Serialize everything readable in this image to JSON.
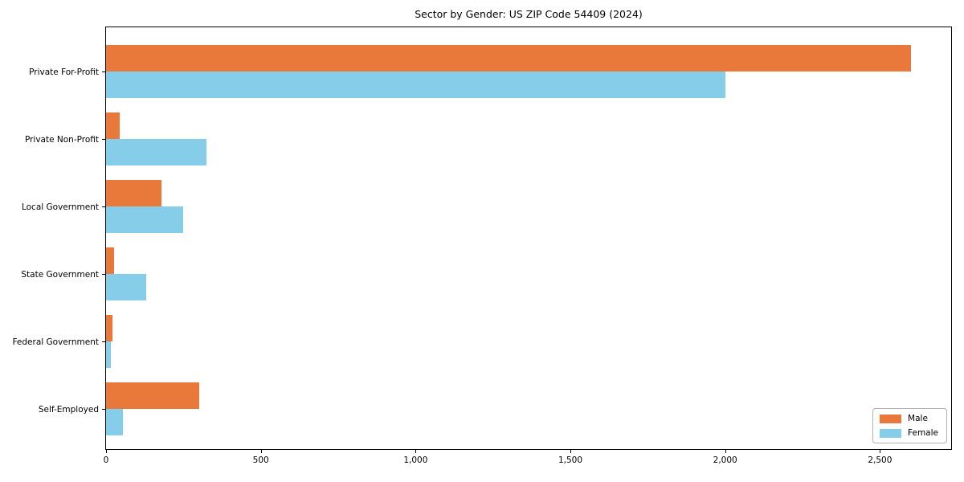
{
  "title": "Sector by Gender: US ZIP Code 54409 (2024)",
  "chart_data": {
    "type": "bar",
    "orientation": "horizontal",
    "title": "Sector by Gender: US ZIP Code 54409 (2024)",
    "categories": [
      "Private For-Profit",
      "Private Non-Profit",
      "Local Government",
      "State Government",
      "Federal Government",
      "Self-Employed"
    ],
    "series": [
      {
        "name": "Male",
        "color": "#E8793B",
        "values": [
          2600,
          45,
          180,
          25,
          20,
          300
        ]
      },
      {
        "name": "Female",
        "color": "#85CDE8",
        "values": [
          2000,
          325,
          250,
          130,
          15,
          55
        ]
      }
    ],
    "xlabel": "",
    "ylabel": "",
    "xlim": [
      0,
      2730
    ],
    "xticks": [
      0,
      500,
      1000,
      1500,
      2000,
      2500
    ],
    "xtick_labels": [
      "0",
      "500",
      "1,000",
      "1,500",
      "2,000",
      "2,500"
    ],
    "grid": false,
    "legend": {
      "position": "lower right",
      "entries": [
        "Male",
        "Female"
      ]
    }
  },
  "colors": {
    "male": "#E8793B",
    "female": "#85CDE8",
    "axis": "#000000",
    "legend_border": "#b3b3b3",
    "text": "#000000"
  }
}
